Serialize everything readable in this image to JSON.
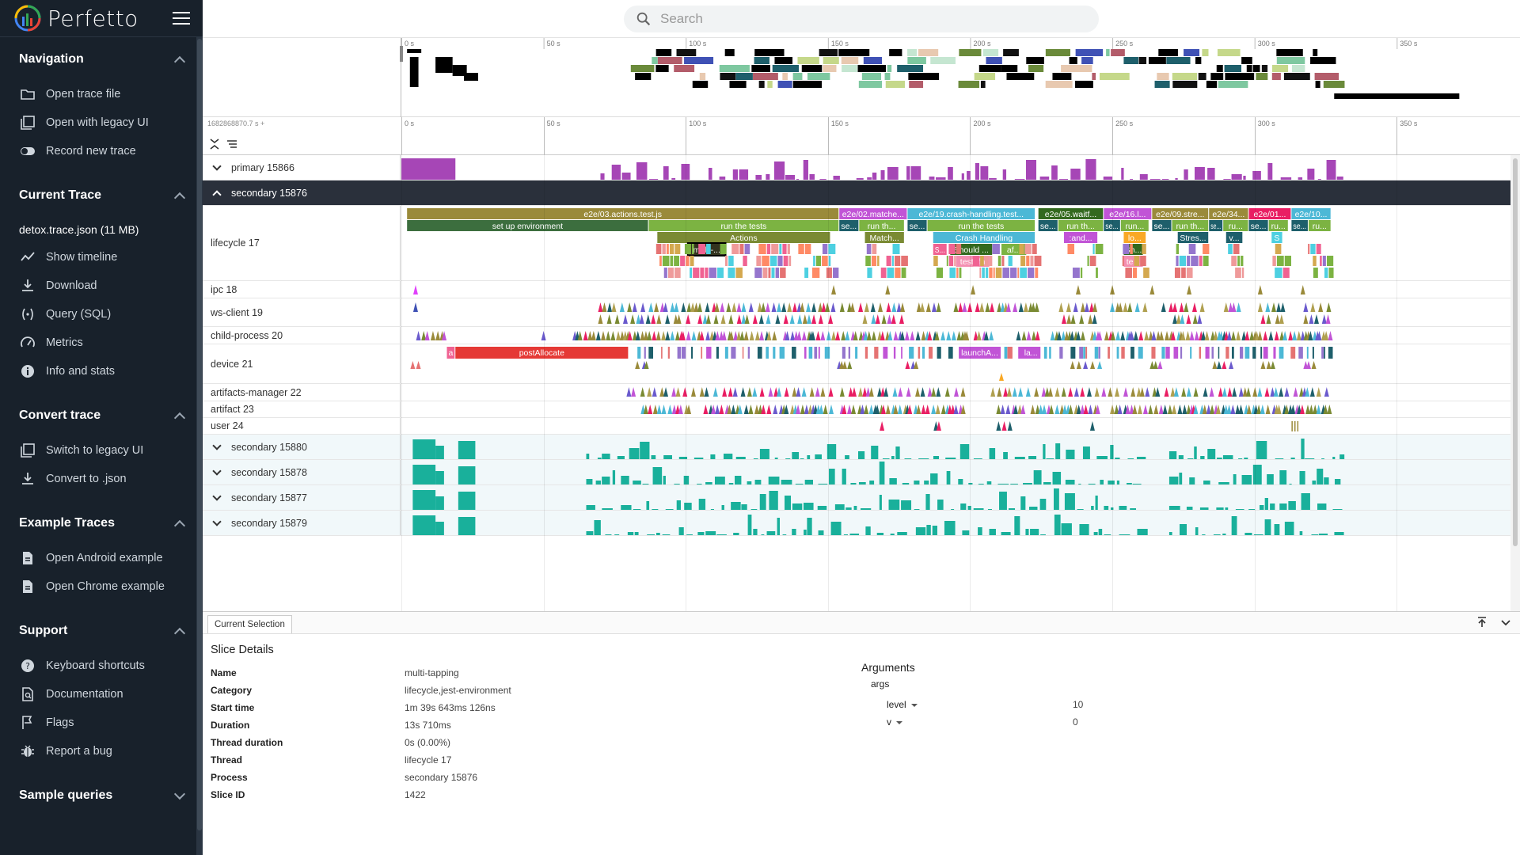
{
  "app": {
    "name": "Perfetto"
  },
  "search": {
    "placeholder": "Search"
  },
  "sidebar": {
    "sections": [
      {
        "title": "Navigation",
        "collapsed": false,
        "items": [
          {
            "label": "Open trace file",
            "icon": "folder-icon"
          },
          {
            "label": "Open with legacy UI",
            "icon": "filter-none-icon"
          },
          {
            "label": "Record new trace",
            "icon": "toggle-icon"
          }
        ]
      },
      {
        "title": "Current Trace",
        "collapsed": false,
        "trace_name": "detox.trace.json (11 MB)",
        "items": [
          {
            "label": "Show timeline",
            "icon": "timeline-icon"
          },
          {
            "label": "Download",
            "icon": "download-icon"
          },
          {
            "label": "Query (SQL)",
            "icon": "query-icon"
          },
          {
            "label": "Metrics",
            "icon": "speed-icon"
          },
          {
            "label": "Info and stats",
            "icon": "info-icon"
          }
        ]
      },
      {
        "title": "Convert trace",
        "collapsed": false,
        "items": [
          {
            "label": "Switch to legacy UI",
            "icon": "filter-none-icon"
          },
          {
            "label": "Convert to .json",
            "icon": "download-icon"
          }
        ]
      },
      {
        "title": "Example Traces",
        "collapsed": false,
        "items": [
          {
            "label": "Open Android example",
            "icon": "description-icon"
          },
          {
            "label": "Open Chrome example",
            "icon": "description-icon"
          }
        ]
      },
      {
        "title": "Support",
        "collapsed": false,
        "items": [
          {
            "label": "Keyboard shortcuts",
            "icon": "help-icon"
          },
          {
            "label": "Documentation",
            "icon": "find-in-page-icon"
          },
          {
            "label": "Flags",
            "icon": "flag-icon"
          },
          {
            "label": "Report a bug",
            "icon": "bug-icon"
          }
        ]
      },
      {
        "title": "Sample queries",
        "collapsed": true,
        "items": []
      }
    ]
  },
  "timeline": {
    "offset_label": "1682868870.7 s +",
    "ticks": [
      "0 s",
      "50 s",
      "100 s",
      "150 s",
      "200 s",
      "250 s",
      "300 s",
      "350 s"
    ],
    "tick_seconds": [
      0,
      50,
      100,
      150,
      200,
      250,
      300,
      350
    ],
    "visible_seconds": 390
  },
  "tracks": [
    {
      "label": "primary 15866",
      "kind": "process",
      "expanded": false,
      "color": "#a646b6"
    },
    {
      "label": "secondary 15876",
      "kind": "process",
      "expanded": true
    },
    {
      "label": "lifecycle 17",
      "kind": "thread"
    },
    {
      "label": "ipc 18",
      "kind": "thread"
    },
    {
      "label": "ws-client 19",
      "kind": "thread"
    },
    {
      "label": "child-process 20",
      "kind": "thread"
    },
    {
      "label": "device 21",
      "kind": "thread"
    },
    {
      "label": "artifacts-manager 22",
      "kind": "thread"
    },
    {
      "label": "artifact 23",
      "kind": "thread"
    },
    {
      "label": "user 24",
      "kind": "thread"
    },
    {
      "label": "secondary 15880",
      "kind": "process",
      "expanded": false,
      "color": "#19b09b"
    },
    {
      "label": "secondary 15878",
      "kind": "process",
      "expanded": false,
      "color": "#19b09b"
    },
    {
      "label": "secondary 15877",
      "kind": "process",
      "expanded": false,
      "color": "#19b09b"
    },
    {
      "label": "secondary 15879",
      "kind": "process",
      "expanded": false,
      "color": "#19b09b"
    }
  ],
  "slices": {
    "lifecycle": [
      {
        "label": "e2e/03.actions.test.js",
        "start": 2,
        "end": 154,
        "depth": 0,
        "color": "#9a8a3a"
      },
      {
        "label": "set up environment",
        "start": 2,
        "end": 87,
        "depth": 1,
        "color": "#3c6e3e"
      },
      {
        "label": "run the tests",
        "start": 87,
        "end": 154,
        "depth": 1,
        "color": "#7cb342"
      },
      {
        "label": "Actions",
        "start": 90,
        "end": 151,
        "depth": 2,
        "color": "#7a8a33"
      },
      {
        "label": "multi-...",
        "start": 101,
        "end": 114,
        "depth": 3,
        "color": "#33331f"
      },
      {
        "label": "e2e/02.matche...",
        "start": 154,
        "end": 178,
        "depth": 0,
        "color": "#c154d6"
      },
      {
        "label": "se...",
        "start": 154,
        "end": 161,
        "depth": 1,
        "color": "#1e5f6b"
      },
      {
        "label": "run th...",
        "start": 161,
        "end": 177,
        "depth": 1,
        "color": "#7cb342"
      },
      {
        "label": "Match...",
        "start": 163,
        "end": 177,
        "depth": 2,
        "color": "#7a8a33"
      },
      {
        "label": "e2e/19.crash-handling.test...",
        "start": 178,
        "end": 223,
        "depth": 0,
        "color": "#4cb8d6"
      },
      {
        "label": "se...",
        "start": 178,
        "end": 185,
        "depth": 1,
        "color": "#1e5f6b"
      },
      {
        "label": "run the tests",
        "start": 185,
        "end": 223,
        "depth": 1,
        "color": "#7cb342"
      },
      {
        "label": "Crash Handling",
        "start": 187,
        "end": 223,
        "depth": 2,
        "color": "#4cb8d6"
      },
      {
        "label": "S...",
        "start": 187,
        "end": 192,
        "depth": 3,
        "color": "#f06292"
      },
      {
        "label": "Should ...",
        "start": 193,
        "end": 208,
        "depth": 3,
        "color": "#33691e"
      },
      {
        "label": "af...",
        "start": 211,
        "end": 220,
        "depth": 3,
        "color": "#7cb342"
      },
      {
        "label": "test_fn",
        "start": 195,
        "end": 207,
        "depth": 4,
        "color": "#f48fb1"
      },
      {
        "label": "e2e/05.waitf...",
        "start": 224,
        "end": 247,
        "depth": 0,
        "color": "#33691e"
      },
      {
        "label": "se...",
        "start": 224,
        "end": 231,
        "depth": 1,
        "color": "#1e5f6b"
      },
      {
        "label": "run th...",
        "start": 231,
        "end": 247,
        "depth": 1,
        "color": "#7cb342"
      },
      {
        "label": ":and...",
        "start": 233,
        "end": 245,
        "depth": 2,
        "color": "#c154d6"
      },
      {
        "label": "e2e/16.l...",
        "start": 247,
        "end": 264,
        "depth": 0,
        "color": "#c154d6"
      },
      {
        "label": "se...",
        "start": 247,
        "end": 253,
        "depth": 1,
        "color": "#1e5f6b"
      },
      {
        "label": "run...",
        "start": 253,
        "end": 263,
        "depth": 1,
        "color": "#7cb342"
      },
      {
        "label": "lo...",
        "start": 254,
        "end": 262,
        "depth": 2,
        "color": "#f9a825"
      },
      {
        "label": "Sh...",
        "start": 254,
        "end": 261,
        "depth": 3,
        "color": "#33691e"
      },
      {
        "label": "te...",
        "start": 254,
        "end": 261,
        "depth": 4,
        "color": "#f48fb1"
      },
      {
        "label": "e2e/09.stre...",
        "start": 264,
        "end": 284,
        "depth": 0,
        "color": "#9a8a3a"
      },
      {
        "label": "se...",
        "start": 264,
        "end": 271,
        "depth": 1,
        "color": "#1e5f6b"
      },
      {
        "label": "run th...",
        "start": 271,
        "end": 284,
        "depth": 1,
        "color": "#7cb342"
      },
      {
        "label": "Stres...",
        "start": 273,
        "end": 284,
        "depth": 2,
        "color": "#1e5f6b"
      },
      {
        "label": "e2e/34...",
        "start": 284,
        "end": 298,
        "depth": 0,
        "color": "#9a8a3a"
      },
      {
        "label": "se...",
        "start": 284,
        "end": 289,
        "depth": 1,
        "color": "#1e5f6b"
      },
      {
        "label": "ru...",
        "start": 289,
        "end": 298,
        "depth": 1,
        "color": "#7cb342"
      },
      {
        "label": "v...",
        "start": 290,
        "end": 296,
        "depth": 2,
        "color": "#1e5f6b"
      },
      {
        "label": "e2e/01...",
        "start": 298,
        "end": 313,
        "depth": 0,
        "color": "#e91e63"
      },
      {
        "label": "se...",
        "start": 298,
        "end": 305,
        "depth": 1,
        "color": "#1e5f6b"
      },
      {
        "label": "ru...",
        "start": 305,
        "end": 312,
        "depth": 1,
        "color": "#7cb342"
      },
      {
        "label": "S",
        "start": 306,
        "end": 310,
        "depth": 2,
        "color": "#4dd0e1"
      },
      {
        "label": "e2e/10...",
        "start": 313,
        "end": 327,
        "depth": 0,
        "color": "#4cb8d6"
      },
      {
        "label": "se...",
        "start": 313,
        "end": 319,
        "depth": 1,
        "color": "#1e5f6b"
      },
      {
        "label": "ru...",
        "start": 319,
        "end": 327,
        "depth": 1,
        "color": "#7cb342"
      }
    ],
    "device": [
      {
        "label": "a",
        "start": 16,
        "end": 19,
        "color": "#f06292"
      },
      {
        "label": "postAllocate",
        "start": 19,
        "end": 80,
        "color": "#e53935"
      },
      {
        "label": "launchA...",
        "start": 196,
        "end": 211,
        "color": "#c154d6"
      },
      {
        "label": "la...",
        "start": 218,
        "end": 225,
        "color": "#c154d6"
      }
    ]
  },
  "selection": {
    "tab": "Current Selection",
    "heading": "Slice Details",
    "fields": [
      {
        "key": "Name",
        "value": "multi-tapping"
      },
      {
        "key": "Category",
        "value": "lifecycle,jest-environment"
      },
      {
        "key": "Start time",
        "value": "1m 39s 643ms 126ns"
      },
      {
        "key": "Duration",
        "value": "13s 710ms"
      },
      {
        "key": "Thread duration",
        "value": "0s (0.00%)"
      },
      {
        "key": "Thread",
        "value": "lifecycle 17"
      },
      {
        "key": "Process",
        "value": "secondary 15876"
      },
      {
        "key": "Slice ID",
        "value": "1422"
      }
    ],
    "arguments_heading": "Arguments",
    "args_group": "args",
    "args": [
      {
        "key": "level",
        "value": "10"
      },
      {
        "key": "v",
        "value": "0"
      }
    ]
  }
}
